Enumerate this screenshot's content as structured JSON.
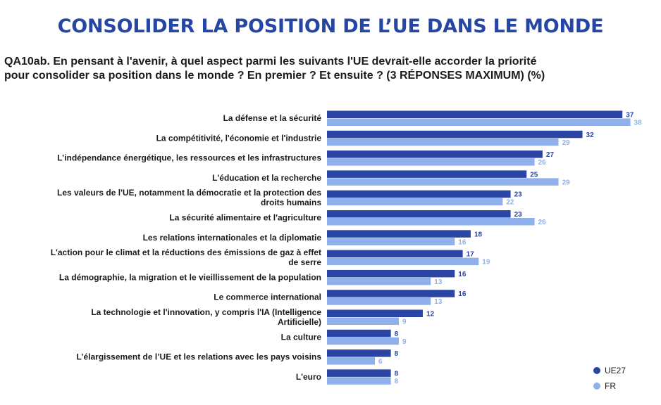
{
  "title": "CONSOLIDER LA POSITION DE L’UE DANS LE MONDE",
  "question": {
    "line1": "QA10ab. En pensant à l'avenir, à quel aspect parmi les suivants l'UE devrait-elle accorder la priorité",
    "line2": "pour consolider sa position dans le monde ? En premier ? Et ensuite ? (3 RÉPONSES MAXIMUM) (%)"
  },
  "colors": {
    "ue27": "#2a45a3",
    "fr": "#8fb0ea"
  },
  "legend": {
    "ue27": "UE27",
    "fr": "FR"
  },
  "chart_data": {
    "type": "bar",
    "orientation": "horizontal",
    "categories": [
      [
        "La défense et la sécurité"
      ],
      [
        "La compétitivité, l'économie et l'industrie"
      ],
      [
        "L’indépendance énergétique, les ressources et les infrastructures"
      ],
      [
        "L'éducation et la recherche"
      ],
      [
        "Les valeurs de l'UE, notamment la démocratie et la protection des",
        "droits humains"
      ],
      [
        "La sécurité alimentaire et l'agriculture"
      ],
      [
        "Les relations internationales et la diplomatie"
      ],
      [
        "L'action pour le climat et la réductions des émissions de gaz à effet",
        "de serre"
      ],
      [
        "La démographie, la migration et le vieillissement de la population"
      ],
      [
        "Le commerce international"
      ],
      [
        "La technologie et l'innovation, y compris l'IA (Intelligence",
        "Artificielle)"
      ],
      [
        "La culture"
      ],
      [
        "L’élargissement de l’UE et les relations avec les pays voisins"
      ],
      [
        "L'euro"
      ]
    ],
    "series": [
      {
        "name": "UE27",
        "values": [
          37,
          32,
          27,
          25,
          23,
          23,
          18,
          17,
          16,
          16,
          12,
          8,
          8,
          8
        ]
      },
      {
        "name": "FR",
        "values": [
          38,
          29,
          26,
          29,
          22,
          26,
          16,
          19,
          13,
          13,
          9,
          9,
          6,
          8
        ]
      }
    ],
    "legend_position": "bottom-right",
    "grid": false
  }
}
